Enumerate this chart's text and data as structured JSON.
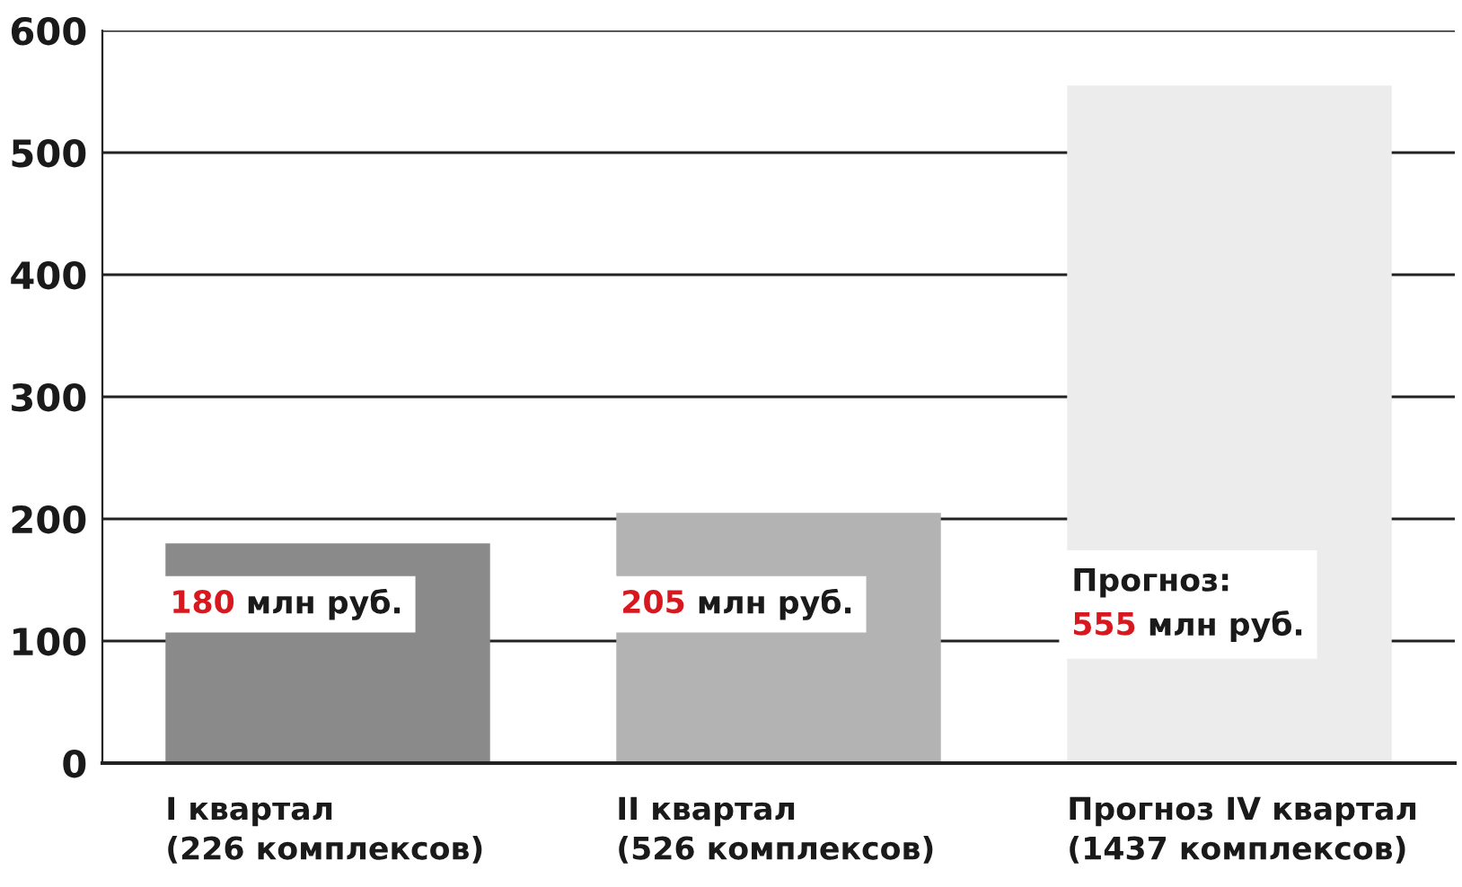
{
  "chart_data": {
    "type": "bar",
    "categories": [
      "I квартал\n(226 комплексов)",
      "II квартал\n(526 комплексов)",
      "Прогноз IV квартал\n(1437 комплексов)"
    ],
    "values": [
      180,
      205,
      555
    ],
    "colors": [
      "#8a8a8a",
      "#b3b3b3",
      "#ececec"
    ],
    "value_labels": [
      "180 млн руб.",
      "205 млн руб.",
      "Прогноз:\n555 млн руб."
    ],
    "ylim": [
      0,
      600
    ],
    "yticks": [
      0,
      100,
      200,
      300,
      400,
      500,
      600
    ],
    "grid": "y"
  }
}
